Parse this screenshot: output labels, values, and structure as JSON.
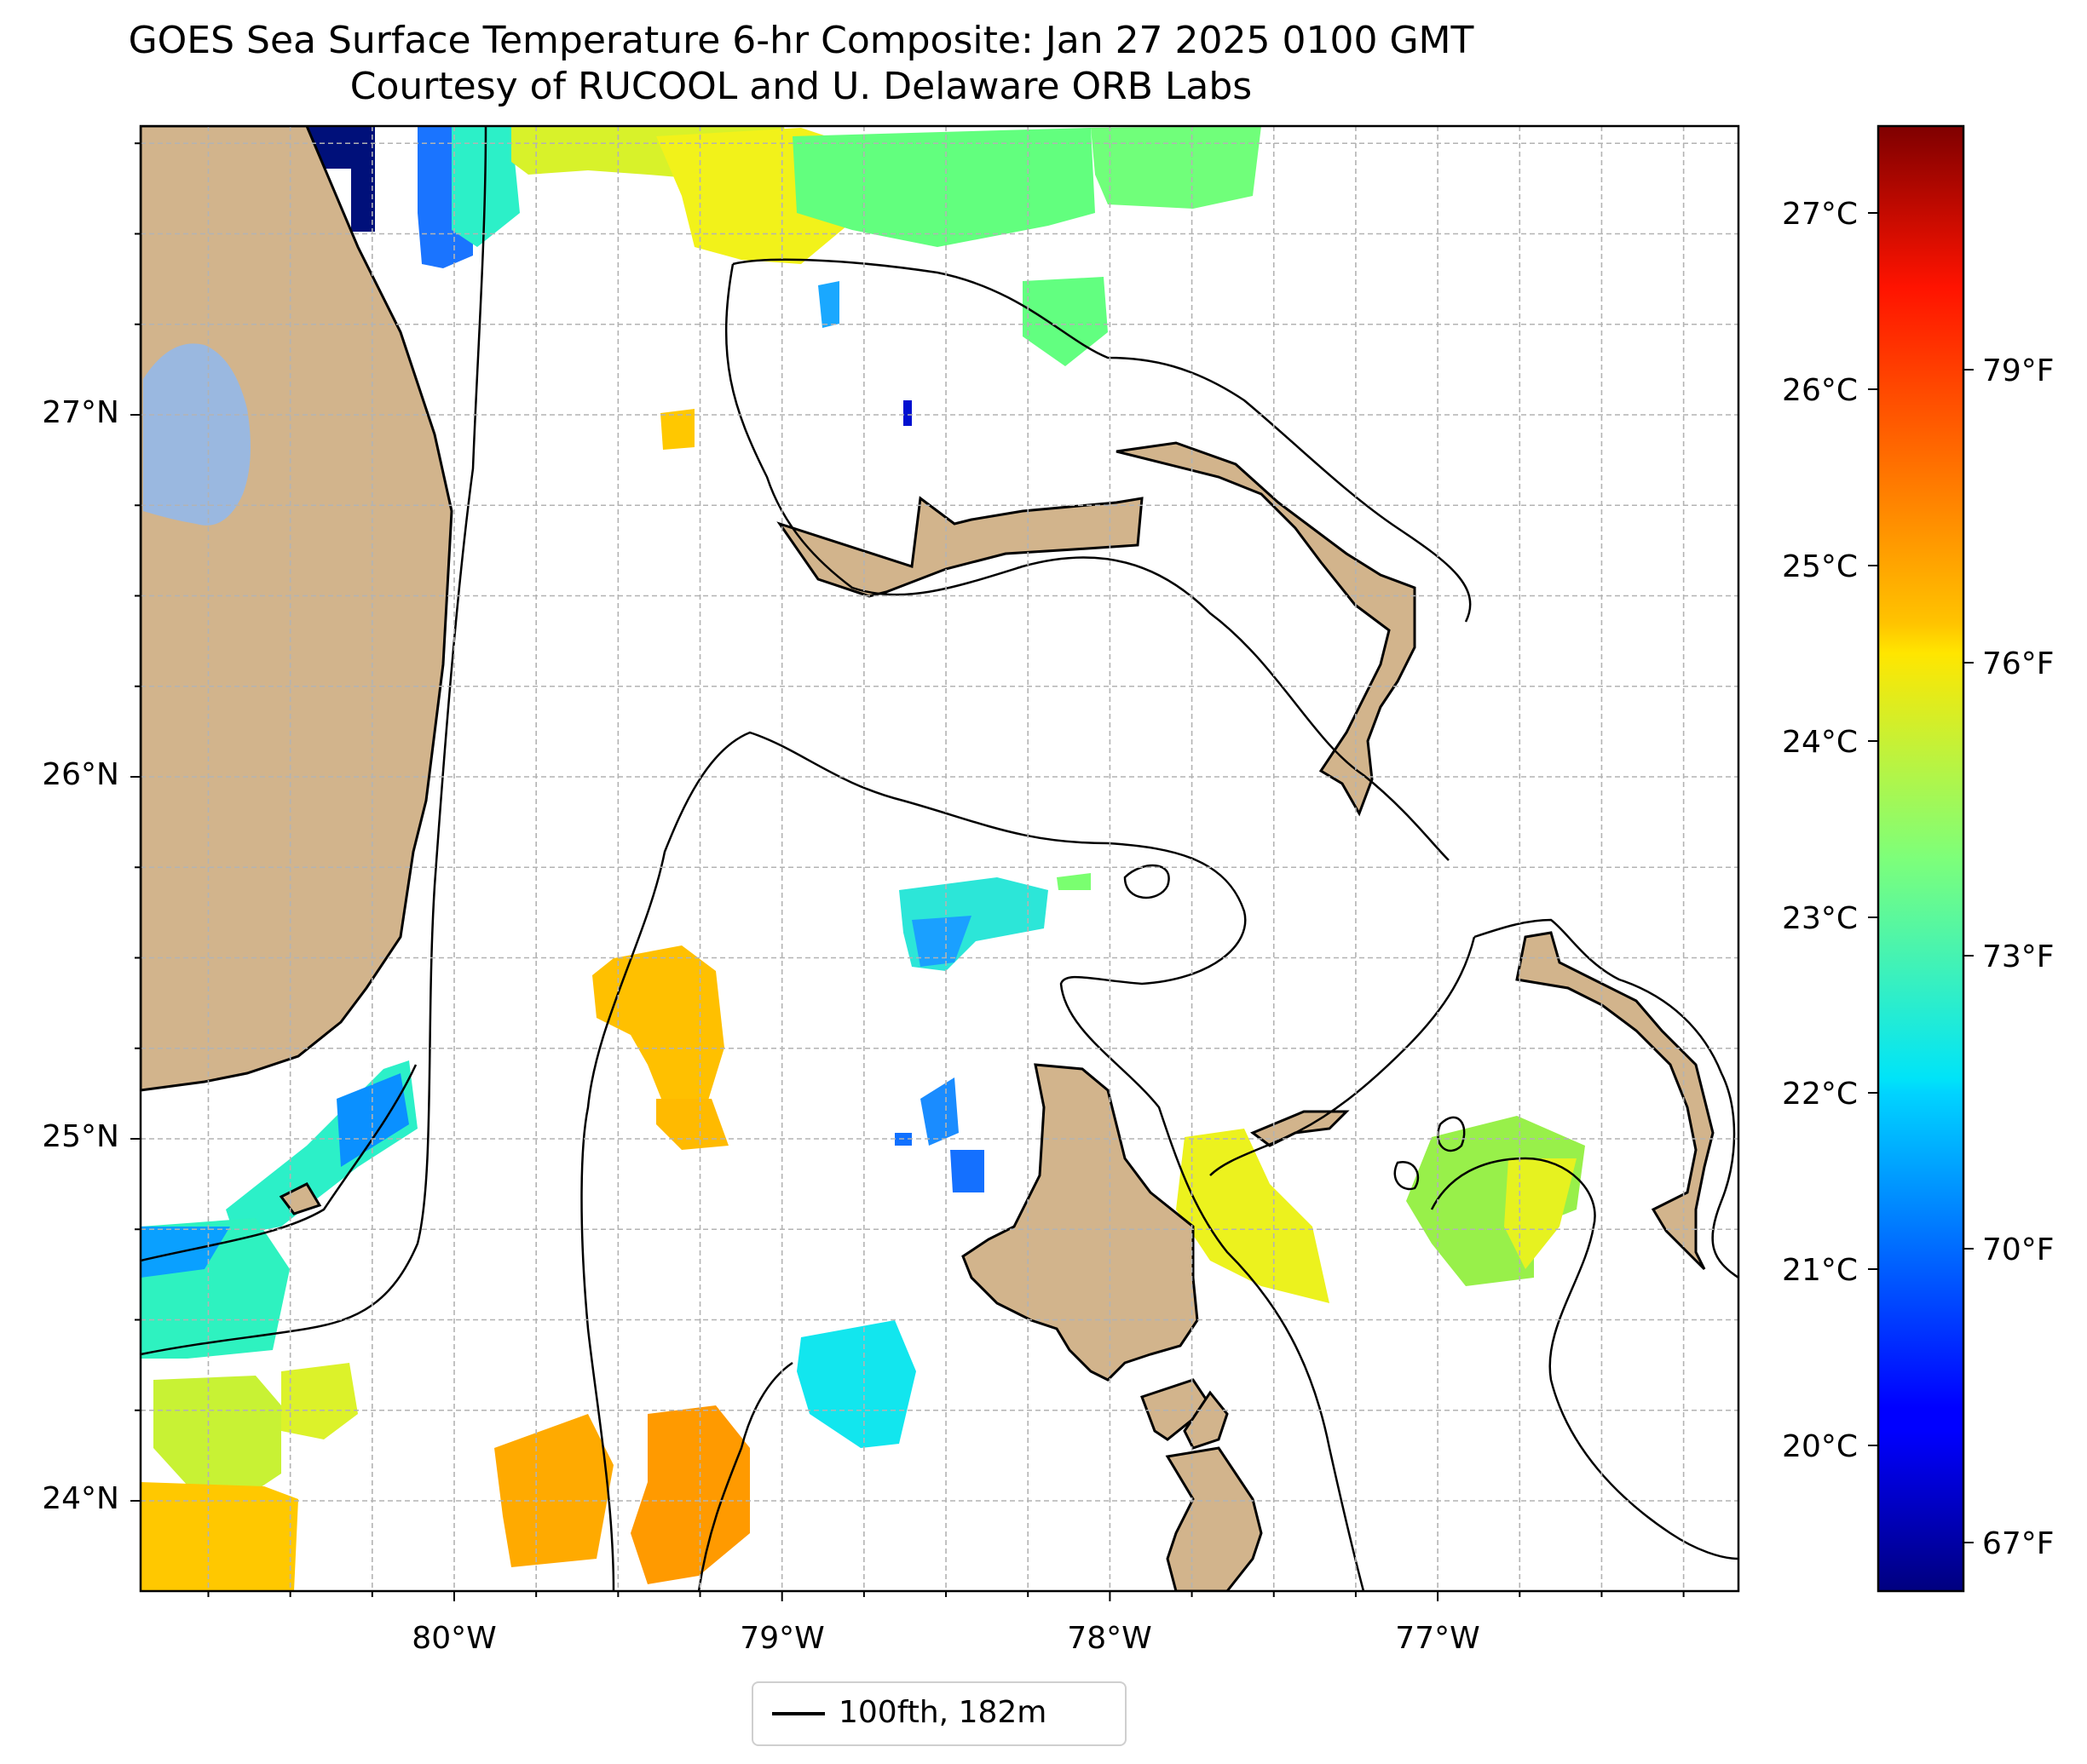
{
  "title": {
    "line1": "GOES Sea Surface Temperature 6-hr Composite: Jan 27 2025 0100 GMT",
    "line2": "Courtesy of RUCOOL and U. Delaware ORB Labs"
  },
  "map": {
    "lon_range": [
      -80.95,
      -76.1
    ],
    "lat_range": [
      23.75,
      27.8
    ],
    "lon_ticks": [
      "80°W",
      "79°W",
      "78°W",
      "77°W"
    ],
    "lat_ticks": [
      "27°N",
      "26°N",
      "25°N",
      "24°N"
    ],
    "grid": "dashed gray, every 0.25°",
    "colors": {
      "land": "#d2b48c",
      "lake": "#9ab8e0",
      "coast": "#000000",
      "isobath": "#000000"
    }
  },
  "colorbar": {
    "colormap": "jet",
    "celsius_ticks": [
      "27°C",
      "26°C",
      "25°C",
      "24°C",
      "23°C",
      "22°C",
      "21°C",
      "20°C"
    ],
    "fahrenheit_ticks": [
      "79°F",
      "76°F",
      "73°F",
      "70°F",
      "67°F"
    ]
  },
  "legend": {
    "label": "100fth, 182m"
  }
}
